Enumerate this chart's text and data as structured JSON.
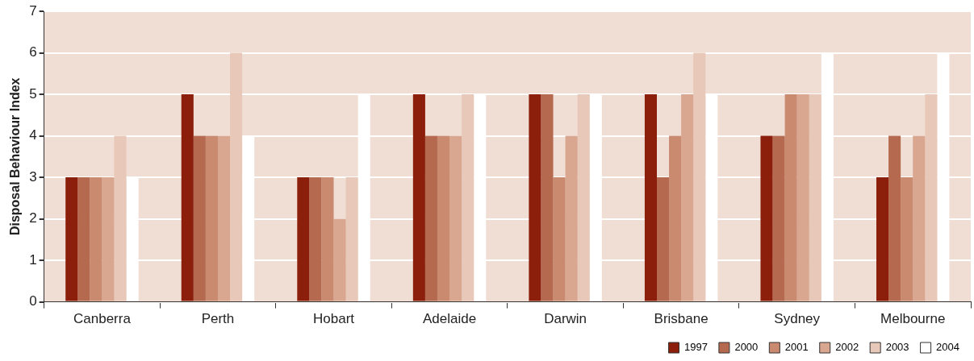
{
  "chart_data": {
    "type": "bar",
    "ylabel": "Disposal Behaviour Index",
    "categories": [
      "Canberra",
      "Perth",
      "Hobart",
      "Adelaide",
      "Darwin",
      "Brisbane",
      "Sydney",
      "Melbourne"
    ],
    "series": [
      {
        "name": "1997",
        "color": "#8b1f0b",
        "values": [
          3,
          5,
          3,
          5,
          5,
          5,
          4,
          3
        ]
      },
      {
        "name": "2000",
        "color": "#b56a50",
        "values": [
          3,
          4,
          3,
          4,
          5,
          3,
          4,
          4
        ]
      },
      {
        "name": "2001",
        "color": "#c98a70",
        "values": [
          3,
          4,
          3,
          4,
          3,
          4,
          5,
          3
        ]
      },
      {
        "name": "2002",
        "color": "#d9a68f",
        "values": [
          3,
          4,
          2,
          4,
          4,
          5,
          5,
          4
        ]
      },
      {
        "name": "2003",
        "color": "#e8c8b8",
        "values": [
          4,
          6,
          3,
          5,
          5,
          6,
          5,
          5
        ]
      },
      {
        "name": "2004",
        "color": "#ffffff",
        "values": [
          3,
          4,
          5,
          5,
          5,
          5,
          6,
          6
        ]
      }
    ],
    "ylim": [
      0,
      7
    ],
    "yticks": [
      0,
      1,
      2,
      3,
      4,
      5,
      6,
      7
    ],
    "grid": "y",
    "legend": "bottom right"
  }
}
